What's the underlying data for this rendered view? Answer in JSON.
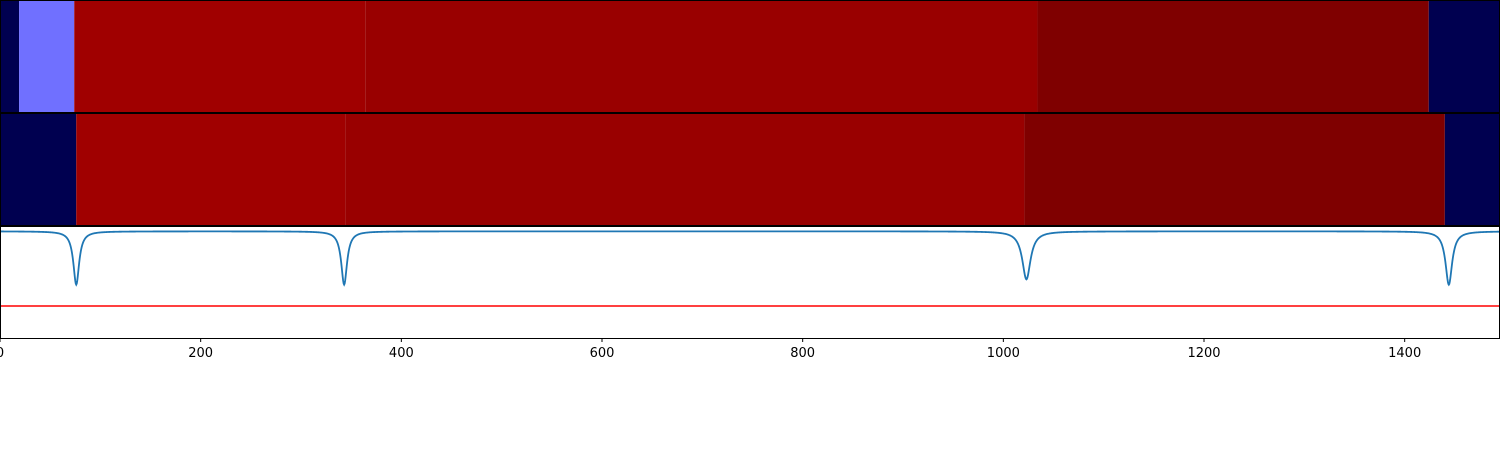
{
  "chart_data": {
    "type": "heatmap",
    "title": "",
    "xlabel": "",
    "ylabel": "",
    "xlim": [
      0,
      1495
    ],
    "x_ticks": [
      0,
      200,
      400,
      600,
      800,
      1000,
      1200,
      1400
    ],
    "x_tick_labels": [
      "0",
      "200",
      "400",
      "600",
      "800",
      "1000",
      "1200",
      "1400"
    ],
    "grid": false,
    "legend": "none",
    "band_rows": [
      {
        "segments": [
          {
            "start": 0,
            "end": 19,
            "color": "#000050"
          },
          {
            "start": 19,
            "end": 74,
            "color": "#7070ff"
          },
          {
            "start": 74,
            "end": 364,
            "color": "#a00000"
          },
          {
            "start": 364,
            "end": 1034,
            "color": "#990000"
          },
          {
            "start": 1034,
            "end": 1424,
            "color": "#7f0000"
          },
          {
            "start": 1424,
            "end": 1495,
            "color": "#000050"
          }
        ]
      },
      {
        "segments": [
          {
            "start": 0,
            "end": 76,
            "color": "#000050"
          },
          {
            "start": 76,
            "end": 344,
            "color": "#a00000"
          },
          {
            "start": 344,
            "end": 1021,
            "color": "#990000"
          },
          {
            "start": 1021,
            "end": 1440,
            "color": "#7f0000"
          },
          {
            "start": 1440,
            "end": 1495,
            "color": "#000050"
          }
        ]
      }
    ],
    "line_panel": {
      "ylim": [
        -1.0,
        0.05
      ],
      "threshold": {
        "value": -0.7,
        "color": "#ff0000"
      },
      "series": {
        "color": "#1f77b4",
        "baseline": 0.0,
        "dips": [
          {
            "x": 76,
            "depth": -0.5,
            "width": 3.5
          },
          {
            "x": 343,
            "depth": -0.5,
            "width": 3.5
          },
          {
            "x": 1023,
            "depth": -0.45,
            "width": 5.0
          },
          {
            "x": 1444,
            "depth": -0.5,
            "width": 4.0
          }
        ]
      }
    }
  }
}
